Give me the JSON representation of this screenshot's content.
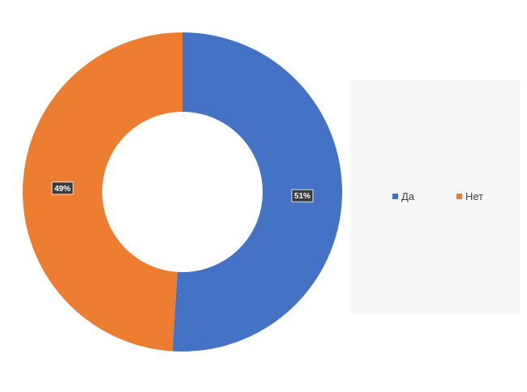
{
  "chart_data": {
    "type": "pie",
    "variant": "doughnut",
    "title": "",
    "slices": [
      {
        "name": "Да",
        "value": 51,
        "label": "51%",
        "color": "#4472c4"
      },
      {
        "name": "Нет",
        "value": 49,
        "label": "49%",
        "color": "#ed7d31"
      }
    ],
    "legend": {
      "position": "right",
      "entries": [
        "Да",
        "Нет"
      ]
    }
  }
}
